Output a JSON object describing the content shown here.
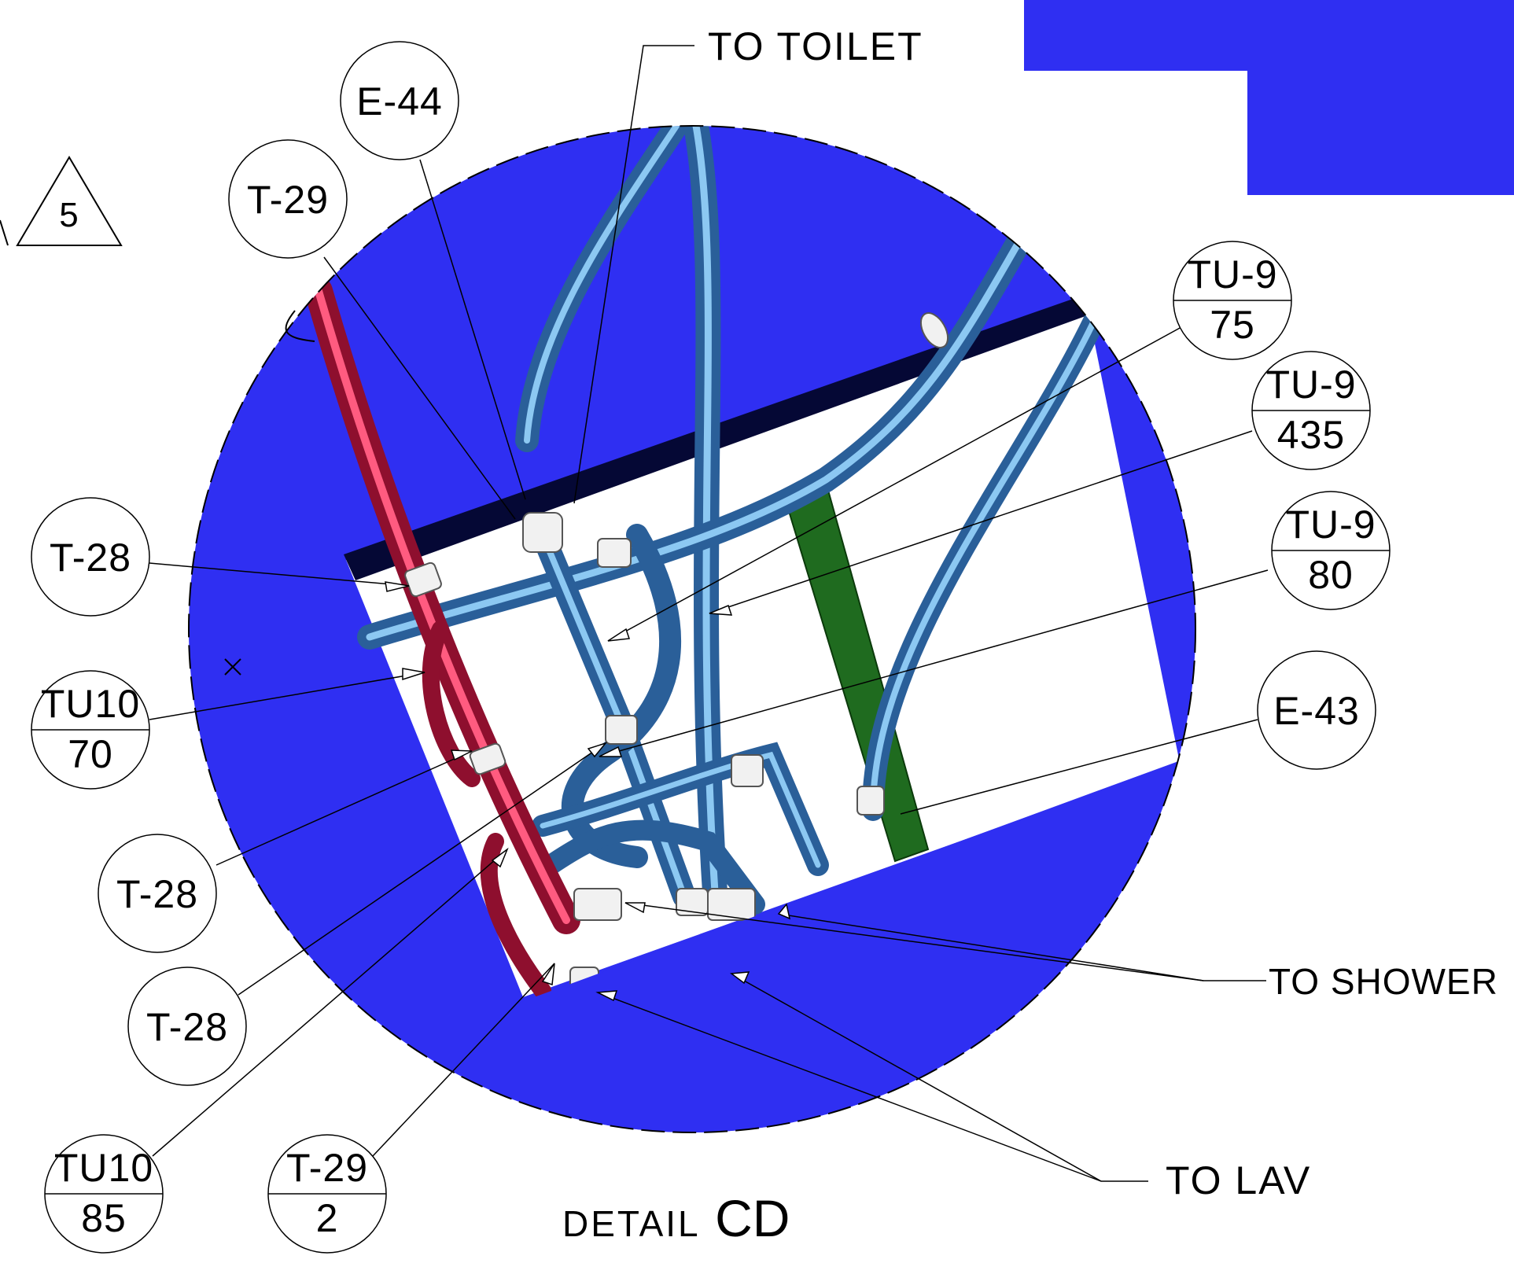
{
  "title": {
    "prefix": "DETAIL",
    "id": "CD"
  },
  "revision_triangle": "5",
  "colors": {
    "background_blue": "#2f2ff2",
    "pipe_blue": "#3f8ed1",
    "pipe_highlight": "#8cc8f2",
    "pipe_red": "#d6264f",
    "bracket_green": "#1f6b1f",
    "dark_bar": "#050835",
    "line": "#000000"
  },
  "bubbles": [
    {
      "key": "e44",
      "top": "E-44"
    },
    {
      "key": "t29_top",
      "top": "T-29"
    },
    {
      "key": "tu9_75",
      "top": "TU-9",
      "bottom": "75"
    },
    {
      "key": "tu9_435",
      "top": "TU-9",
      "bottom": "435"
    },
    {
      "key": "tu9_80",
      "top": "TU-9",
      "bottom": "80"
    },
    {
      "key": "e43",
      "top": "E-43"
    },
    {
      "key": "t28_a",
      "top": "T-28"
    },
    {
      "key": "tu10_70",
      "top": "TU10",
      "bottom": "70"
    },
    {
      "key": "t28_b",
      "top": "T-28"
    },
    {
      "key": "t28_c",
      "top": "T-28"
    },
    {
      "key": "tu10_85",
      "top": "TU10",
      "bottom": "85"
    },
    {
      "key": "t29_2",
      "top": "T-29",
      "bottom": "2"
    }
  ],
  "callouts": {
    "to_toilet": "TO TOILET",
    "to_shower": "TO SHOWER",
    "to_lav": "TO LAV"
  }
}
